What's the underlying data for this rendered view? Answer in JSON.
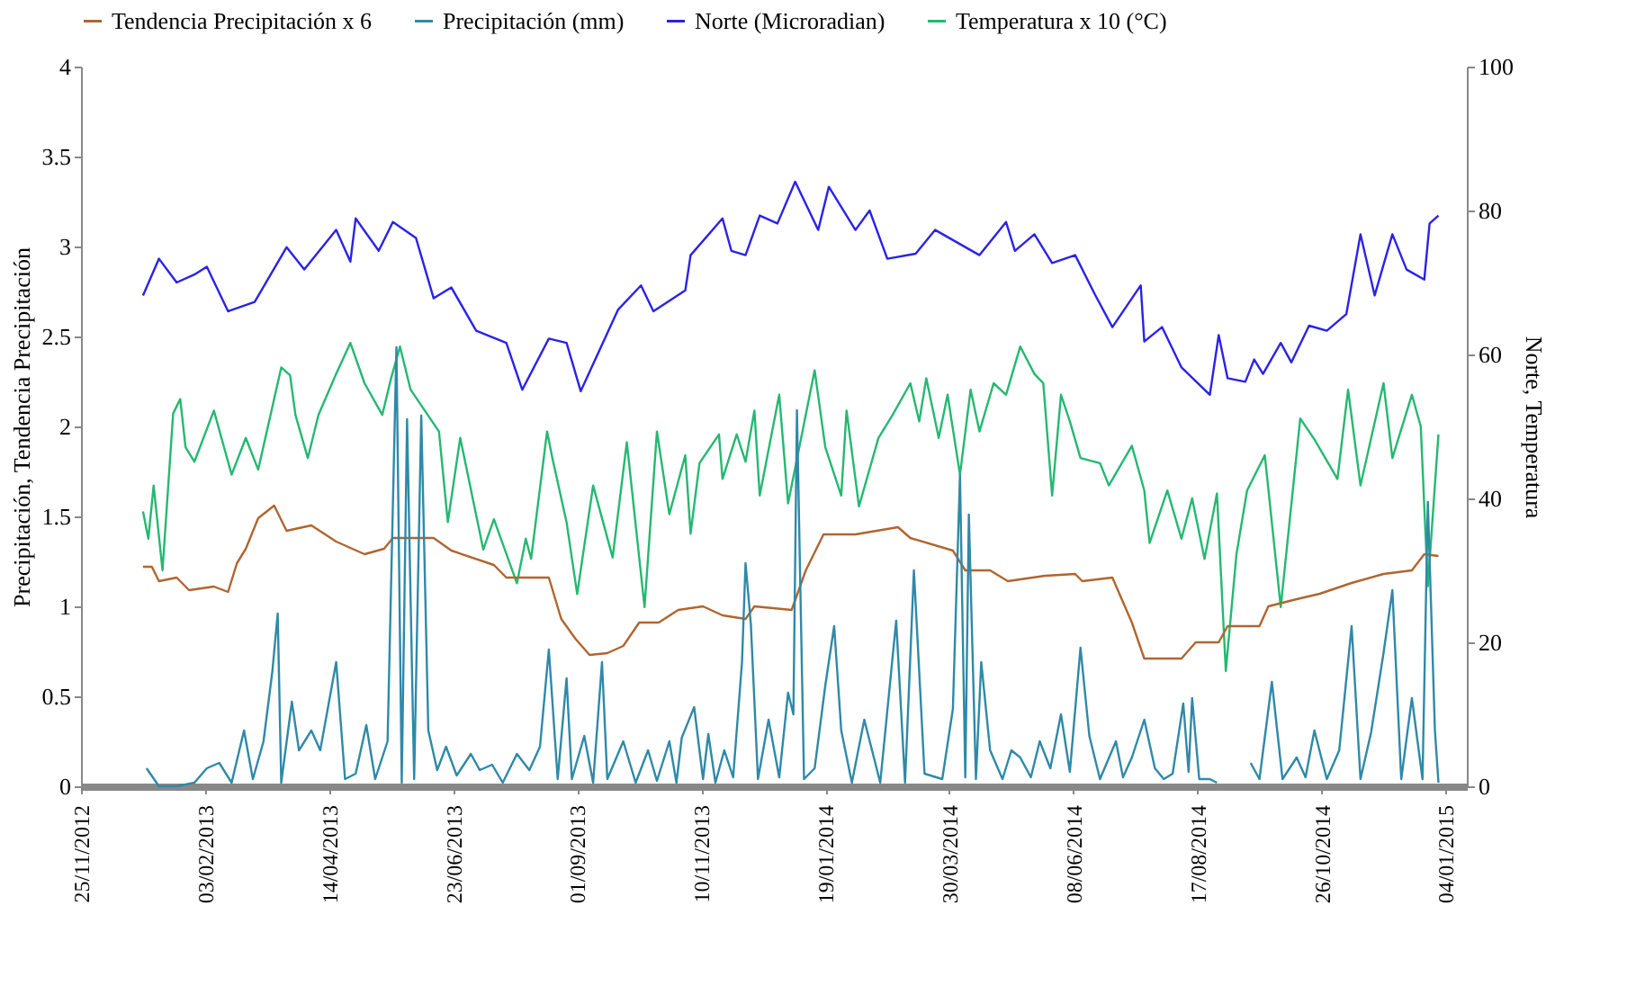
{
  "chart_data": {
    "type": "line",
    "ylabel": "Precipitación, Tendencia Precipitación",
    "y2label": "Norte, Temperatura",
    "legend": "top",
    "grid": false,
    "xlim": [
      "2012-11-25",
      "2015-01-16"
    ],
    "xticks": [
      {
        "value": "2012-11-25",
        "label": "25/11/2012"
      },
      {
        "value": "2013-02-03",
        "label": "03/02/2013"
      },
      {
        "value": "2013-04-14",
        "label": "14/04/2013"
      },
      {
        "value": "2013-06-23",
        "label": "23/06/2013"
      },
      {
        "value": "2013-09-01",
        "label": "01/09/2013"
      },
      {
        "value": "2013-11-10",
        "label": "10/11/2013"
      },
      {
        "value": "2014-01-19",
        "label": "19/01/2014"
      },
      {
        "value": "2014-03-30",
        "label": "30/03/2014"
      },
      {
        "value": "2014-06-08",
        "label": "08/06/2014"
      },
      {
        "value": "2014-08-17",
        "label": "17/08/2014"
      },
      {
        "value": "2014-10-26",
        "label": "26/10/2014"
      },
      {
        "value": "2015-01-04",
        "label": "04/01/2015"
      }
    ],
    "ylim": [
      0,
      4
    ],
    "yticks": [
      0,
      0.5,
      1,
      1.5,
      2,
      2.5,
      3,
      3.5,
      4
    ],
    "y2lim": [
      0,
      100
    ],
    "y2ticks": [
      0,
      20,
      40,
      60,
      80,
      100
    ],
    "series": [
      {
        "name": "Tendencia Precipitación x 6",
        "color": "#b0652f",
        "x": [
          "2012-12-30",
          "2013-01-04",
          "2013-01-08",
          "2013-01-18",
          "2013-01-25",
          "2013-02-08",
          "2013-02-16",
          "2013-02-21",
          "2013-02-26",
          "2013-03-05",
          "2013-03-14",
          "2013-03-21",
          "2013-04-04",
          "2013-04-18",
          "2013-05-04",
          "2013-05-15",
          "2013-05-20",
          "2013-06-02",
          "2013-06-12",
          "2013-06-22",
          "2013-07-16",
          "2013-07-23",
          "2013-08-16",
          "2013-08-23",
          "2013-08-31",
          "2013-09-08",
          "2013-09-18",
          "2013-09-27",
          "2013-10-06",
          "2013-10-17",
          "2013-10-28",
          "2013-11-11",
          "2013-11-22",
          "2013-12-05",
          "2013-12-10",
          "2013-12-31",
          "2014-01-08",
          "2014-01-18",
          "2014-02-05",
          "2014-03-01",
          "2014-03-08",
          "2014-04-01",
          "2014-04-08",
          "2014-04-22",
          "2014-05-02",
          "2014-05-23",
          "2014-06-09",
          "2014-06-13",
          "2014-06-30",
          "2014-07-11",
          "2014-07-18",
          "2014-08-08",
          "2014-08-16",
          "2014-08-29",
          "2014-09-03",
          "2014-09-21",
          "2014-09-26",
          "2014-10-12",
          "2014-10-25",
          "2014-11-12",
          "2014-11-30",
          "2014-12-16",
          "2014-12-23",
          "2014-12-31"
        ],
        "values": [
          1.22,
          1.22,
          1.14,
          1.16,
          1.09,
          1.11,
          1.08,
          1.24,
          1.32,
          1.49,
          1.56,
          1.42,
          1.45,
          1.36,
          1.29,
          1.32,
          1.38,
          1.38,
          1.38,
          1.31,
          1.23,
          1.16,
          1.16,
          0.93,
          0.82,
          0.73,
          0.74,
          0.78,
          0.91,
          0.91,
          0.98,
          1.0,
          0.95,
          0.93,
          1.0,
          0.98,
          1.2,
          1.4,
          1.4,
          1.44,
          1.38,
          1.31,
          1.2,
          1.2,
          1.14,
          1.17,
          1.18,
          1.14,
          1.16,
          0.91,
          0.71,
          0.71,
          0.8,
          0.8,
          0.89,
          0.89,
          1.0,
          1.04,
          1.07,
          1.13,
          1.18,
          1.2,
          1.29,
          1.28
        ]
      },
      {
        "name": "Precipitación (mm)",
        "color": "#2f89a8",
        "x": [
          "2013-01-01",
          "2013-01-08",
          "2013-01-18",
          "2013-01-28",
          "2013-02-04",
          "2013-02-11",
          "2013-02-18",
          "2013-02-25",
          "2013-03-02",
          "2013-03-08",
          "2013-03-13",
          "2013-03-16",
          "2013-03-18",
          "2013-03-24",
          "2013-03-28",
          "2013-04-04",
          "2013-04-09",
          "2013-04-18",
          "2013-04-23",
          "2013-04-29",
          "2013-05-05",
          "2013-05-10",
          "2013-05-17",
          "2013-05-22",
          "2013-05-25",
          "2013-05-28",
          "2013-06-01",
          "2013-06-05",
          "2013-06-09",
          "2013-06-14",
          "2013-06-19",
          "2013-06-25",
          "2013-07-03",
          "2013-07-08",
          "2013-07-15",
          "2013-07-21",
          "2013-07-29",
          "2013-08-05",
          "2013-08-11",
          "2013-08-16",
          "2013-08-21",
          "2013-08-26",
          "2013-08-29",
          "2013-09-05",
          "2013-09-10",
          "2013-09-15",
          "2013-09-18",
          "2013-09-27",
          "2013-10-04",
          "2013-10-11",
          "2013-10-16",
          "2013-10-23",
          "2013-10-27",
          "2013-10-30",
          "2013-11-06",
          "2013-11-11",
          "2013-11-14",
          "2013-11-18",
          "2013-11-23",
          "2013-11-28",
          "2013-12-03",
          "2013-12-05",
          "2013-12-08",
          "2013-12-12",
          "2013-12-18",
          "2013-12-24",
          "2013-12-29",
          "2014-01-01",
          "2014-01-03",
          "2014-01-07",
          "2014-01-13",
          "2014-01-19",
          "2014-01-24",
          "2014-01-28",
          "2014-02-03",
          "2014-02-10",
          "2014-02-19",
          "2014-02-28",
          "2014-03-05",
          "2014-03-10",
          "2014-03-16",
          "2014-03-26",
          "2014-04-01",
          "2014-04-05",
          "2014-04-08",
          "2014-04-10",
          "2014-04-14",
          "2014-04-17",
          "2014-04-22",
          "2014-04-29",
          "2014-05-04",
          "2014-05-09",
          "2014-05-15",
          "2014-05-20",
          "2014-05-26",
          "2014-06-01",
          "2014-06-06",
          "2014-06-12",
          "2014-06-17",
          "2014-06-23",
          "2014-07-02",
          "2014-07-06",
          "2014-07-11",
          "2014-07-18",
          "2014-07-24",
          "2014-07-29",
          "2014-08-03",
          "2014-08-09",
          "2014-08-12",
          "2014-08-14",
          "2014-08-18",
          "2014-08-24",
          "2014-08-28",
          "2014-09-06",
          "2014-09-16",
          "2014-09-21",
          "2014-09-28",
          "2014-10-04",
          "2014-10-12",
          "2014-10-17",
          "2014-10-22",
          "2014-10-29",
          "2014-11-05",
          "2014-11-12",
          "2014-11-17",
          "2014-11-23",
          "2014-11-30",
          "2014-12-05",
          "2014-12-10",
          "2014-12-16",
          "2014-12-22",
          "2014-12-25",
          "2014-12-29",
          "2014-12-31"
        ],
        "values": [
          0.1,
          0,
          0,
          0.02,
          0.1,
          0.13,
          0.02,
          0.31,
          0.04,
          0.25,
          0.64,
          0.96,
          0.02,
          0.47,
          0.2,
          0.31,
          0.2,
          0.69,
          0.04,
          0.07,
          0.34,
          0.04,
          0.25,
          2.44,
          0.02,
          2.04,
          0.04,
          2.06,
          0.31,
          0.09,
          0.22,
          0.06,
          0.18,
          0.09,
          0.12,
          0.02,
          0.18,
          0.09,
          0.22,
          0.76,
          0.04,
          0.6,
          0.04,
          0.28,
          0.02,
          0.69,
          0.04,
          0.25,
          0.02,
          0.2,
          0.03,
          0.25,
          0.02,
          0.27,
          0.44,
          0.04,
          0.29,
          0.02,
          0.2,
          0.05,
          0.69,
          1.24,
          0.9,
          0.04,
          0.37,
          0.05,
          0.52,
          0.4,
          2.09,
          0.04,
          0.1,
          0.56,
          0.89,
          0.31,
          0.02,
          0.37,
          0.02,
          0.92,
          0.02,
          1.2,
          0.07,
          0.04,
          0.43,
          1.73,
          0.05,
          1.51,
          0.04,
          0.69,
          0.2,
          0.04,
          0.2,
          0.16,
          0.05,
          0.25,
          0.1,
          0.4,
          0.08,
          0.77,
          0.28,
          0.04,
          0.25,
          0.05,
          0.16,
          0.37,
          0.1,
          0.04,
          0.07,
          0.46,
          0.08,
          0.49,
          0.04,
          0.04,
          0.02,
          null,
          0.13,
          0.04,
          0.58,
          0.04,
          0.16,
          0.05,
          0.31,
          0.04,
          0.2,
          0.89,
          0.04,
          0.3,
          0.74,
          1.09,
          0.04,
          0.49,
          0.04,
          1.58,
          0.31,
          0.02
        ]
      },
      {
        "name": "Norte (Microradian)",
        "color": "#2a22e8",
        "axis": "y2",
        "x": [
          "2012-12-30",
          "2013-01-08",
          "2013-01-18",
          "2013-01-28",
          "2013-02-04",
          "2013-02-16",
          "2013-03-03",
          "2013-03-21",
          "2013-03-31",
          "2013-04-18",
          "2013-04-26",
          "2013-04-29",
          "2013-05-12",
          "2013-05-20",
          "2013-06-02",
          "2013-06-12",
          "2013-06-22",
          "2013-07-06",
          "2013-07-23",
          "2013-08-01",
          "2013-08-16",
          "2013-08-26",
          "2013-09-03",
          "2013-09-24",
          "2013-10-07",
          "2013-10-14",
          "2013-11-01",
          "2013-11-04",
          "2013-11-22",
          "2013-11-27",
          "2013-12-05",
          "2013-12-13",
          "2013-12-23",
          "2014-01-02",
          "2014-01-15",
          "2014-01-21",
          "2014-02-05",
          "2014-02-13",
          "2014-02-23",
          "2014-03-11",
          "2014-03-22",
          "2014-04-16",
          "2014-05-01",
          "2014-05-06",
          "2014-05-17",
          "2014-05-27",
          "2014-06-09",
          "2014-06-20",
          "2014-06-30",
          "2014-07-16",
          "2014-07-18",
          "2014-07-28",
          "2014-08-08",
          "2014-08-24",
          "2014-08-29",
          "2014-09-03",
          "2014-09-13",
          "2014-09-18",
          "2014-09-23",
          "2014-10-03",
          "2014-10-09",
          "2014-10-19",
          "2014-10-29",
          "2014-11-09",
          "2014-11-17",
          "2014-11-25",
          "2014-12-05",
          "2014-12-13",
          "2014-12-23",
          "2014-12-26",
          "2014-12-31"
        ],
        "values": [
          68.2,
          73.3,
          70,
          71.1,
          72.2,
          66,
          67.3,
          74.9,
          71.8,
          77.3,
          72.9,
          78.9,
          74.4,
          78.4,
          76.2,
          67.8,
          69.3,
          63.3,
          61.6,
          55.1,
          62.2,
          61.6,
          54.9,
          66.2,
          69.6,
          66,
          68.9,
          73.8,
          78.9,
          74.4,
          73.8,
          79.3,
          78.2,
          84,
          77.3,
          83.3,
          77.3,
          80,
          73.3,
          74,
          77.3,
          73.8,
          78.4,
          74.4,
          76.7,
          72.7,
          73.8,
          68.4,
          63.8,
          69.6,
          61.8,
          63.8,
          58.2,
          54.4,
          62.7,
          56.7,
          56.2,
          59.3,
          57.3,
          61.6,
          58.9,
          64,
          63.3,
          65.6,
          76.7,
          68.2,
          76.7,
          71.8,
          70.4,
          78.2,
          79.3
        ]
      },
      {
        "name": "Temperatura x 10 (°C)",
        "color": "#25b872",
        "axis": "y2",
        "x": [
          "2012-12-30",
          "2013-01-02",
          "2013-01-05",
          "2013-01-10",
          "2013-01-16",
          "2013-01-20",
          "2013-01-23",
          "2013-01-28",
          "2013-02-08",
          "2013-02-18",
          "2013-02-26",
          "2013-03-05",
          "2013-03-18",
          "2013-03-23",
          "2013-03-26",
          "2013-04-02",
          "2013-04-08",
          "2013-04-18",
          "2013-04-26",
          "2013-05-04",
          "2013-05-14",
          "2013-05-19",
          "2013-05-24",
          "2013-05-30",
          "2013-06-15",
          "2013-06-20",
          "2013-06-27",
          "2013-07-10",
          "2013-07-16",
          "2013-07-29",
          "2013-08-03",
          "2013-08-06",
          "2013-08-15",
          "2013-08-18",
          "2013-08-26",
          "2013-09-01",
          "2013-09-10",
          "2013-09-21",
          "2013-09-29",
          "2013-10-09",
          "2013-10-16",
          "2013-10-23",
          "2013-11-01",
          "2013-11-04",
          "2013-11-09",
          "2013-11-20",
          "2013-11-22",
          "2013-11-30",
          "2013-12-05",
          "2013-12-10",
          "2013-12-13",
          "2013-12-24",
          "2013-12-29",
          "2014-01-13",
          "2014-01-19",
          "2014-01-28",
          "2014-01-31",
          "2014-02-07",
          "2014-02-18",
          "2014-02-26",
          "2014-03-08",
          "2014-03-13",
          "2014-03-17",
          "2014-03-24",
          "2014-03-29",
          "2014-04-05",
          "2014-04-11",
          "2014-04-16",
          "2014-04-24",
          "2014-05-01",
          "2014-05-09",
          "2014-05-17",
          "2014-05-22",
          "2014-05-27",
          "2014-06-01",
          "2014-06-06",
          "2014-06-12",
          "2014-06-23",
          "2014-06-28",
          "2014-07-11",
          "2014-07-18",
          "2014-07-21",
          "2014-07-31",
          "2014-08-08",
          "2014-08-14",
          "2014-08-21",
          "2014-08-28",
          "2014-09-02",
          "2014-09-08",
          "2014-09-14",
          "2014-09-24",
          "2014-10-03",
          "2014-10-14",
          "2014-10-22",
          "2014-11-04",
          "2014-11-10",
          "2014-11-17",
          "2014-11-30",
          "2014-12-05",
          "2014-12-16",
          "2014-12-21",
          "2014-12-25",
          "2014-12-31"
        ],
        "values": [
          38.2,
          34.4,
          41.8,
          30,
          51.8,
          53.8,
          47.1,
          45.1,
          52.2,
          43.3,
          48.4,
          44,
          58.2,
          57.1,
          51.6,
          45.6,
          51.6,
          57.3,
          61.6,
          56,
          51.6,
          56.7,
          61.1,
          55.1,
          49.3,
          36.7,
          48.4,
          32.9,
          37.1,
          28.2,
          34.4,
          31.6,
          49.3,
          45.6,
          36.7,
          26.7,
          41.8,
          31.8,
          47.8,
          24.9,
          49.3,
          37.8,
          46,
          35.1,
          44.9,
          48.9,
          42.7,
          48.9,
          45.1,
          52.2,
          40.4,
          54.4,
          39.3,
          57.8,
          47.1,
          40.4,
          52.2,
          38.9,
          48.4,
          51.6,
          56,
          50.7,
          56.7,
          48.4,
          54.4,
          43.3,
          55.1,
          49.3,
          56,
          54.4,
          61.1,
          57.3,
          56,
          40.4,
          54.4,
          50.7,
          45.6,
          44.9,
          41.8,
          47.3,
          41.1,
          33.8,
          41.1,
          34.4,
          40,
          31.6,
          40.7,
          16,
          32.2,
          41.1,
          46,
          24.9,
          51.1,
          48.2,
          42.7,
          55.1,
          41.8,
          56,
          45.6,
          54.4,
          50,
          27.8,
          48.9
        ]
      }
    ]
  }
}
